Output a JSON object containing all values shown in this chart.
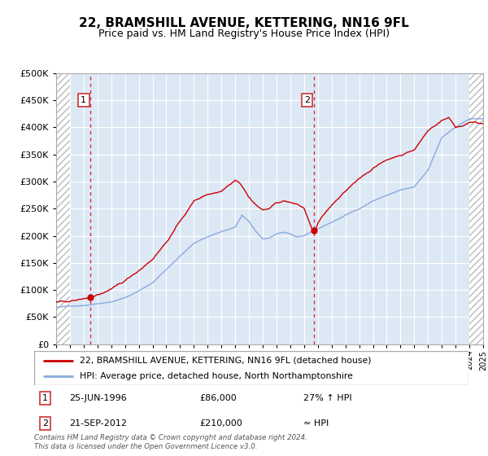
{
  "title": "22, BRAMSHILL AVENUE, KETTERING, NN16 9FL",
  "subtitle": "Price paid vs. HM Land Registry's House Price Index (HPI)",
  "legend_line1": "22, BRAMSHILL AVENUE, KETTERING, NN16 9FL (detached house)",
  "legend_line2": "HPI: Average price, detached house, North Northamptonshire",
  "annotation1_date": "25-JUN-1996",
  "annotation1_price": "£86,000",
  "annotation1_hpi": "27% ↑ HPI",
  "annotation1_year": 1996.49,
  "annotation1_value": 86000,
  "annotation2_date": "21-SEP-2012",
  "annotation2_price": "£210,000",
  "annotation2_hpi": "≈ HPI",
  "annotation2_year": 2012.72,
  "annotation2_value": 210000,
  "ylim": [
    0,
    500000
  ],
  "yticks": [
    0,
    50000,
    100000,
    150000,
    200000,
    250000,
    300000,
    350000,
    400000,
    450000,
    500000
  ],
  "xmin": 1994,
  "xmax": 2025,
  "line_color_red": "#cc0000",
  "line_color_blue": "#88aadd",
  "dashed_color": "#cc3333",
  "bg_plot_color": "#dde8f5",
  "grid_color": "#ffffff",
  "footer": "Contains HM Land Registry data © Crown copyright and database right 2024.\nThis data is licensed under the Open Government Licence v3.0."
}
